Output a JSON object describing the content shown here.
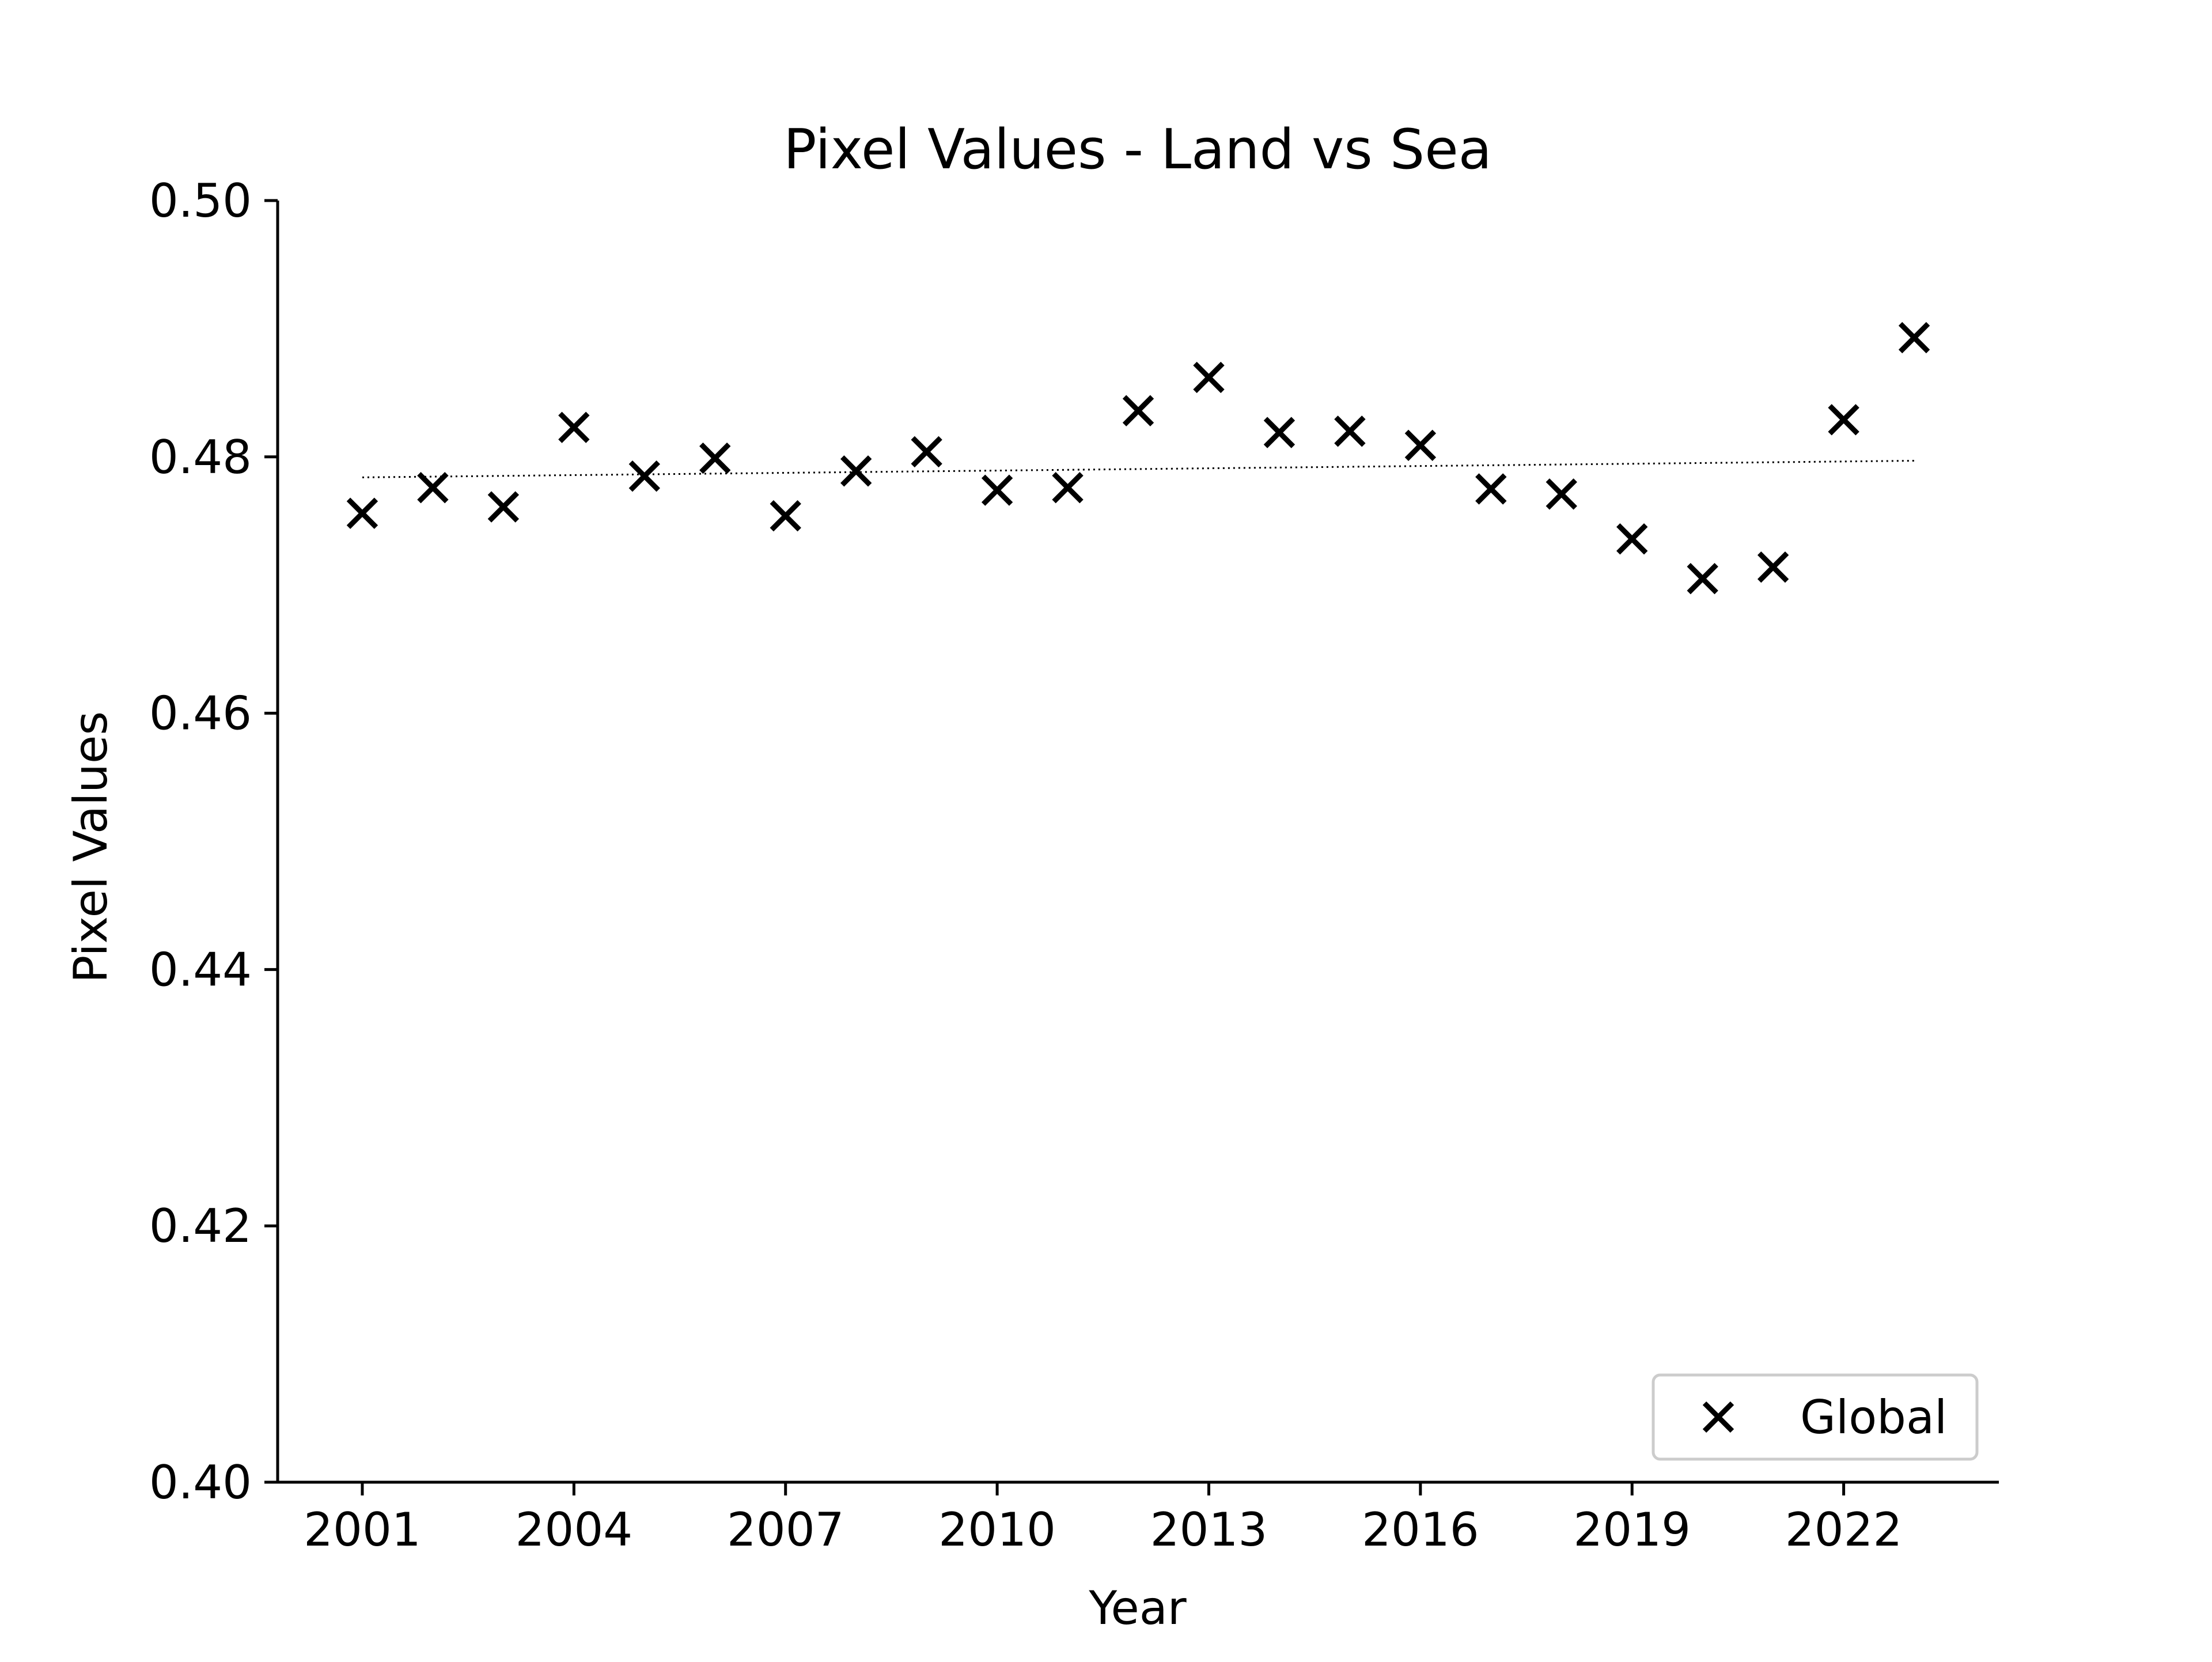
{
  "chart_data": {
    "type": "scatter",
    "title": "Pixel Values - Land vs Sea",
    "xlabel": "Year",
    "ylabel": "Pixel Values",
    "xlim": [
      1999.8,
      2024.2
    ],
    "ylim": [
      0.4,
      0.5
    ],
    "xticks": [
      2001,
      2004,
      2007,
      2010,
      2013,
      2016,
      2019,
      2022
    ],
    "yticks": [
      0.4,
      0.42,
      0.44,
      0.46,
      0.48,
      0.5
    ],
    "x_tick_labels": [
      "2001",
      "2004",
      "2007",
      "2010",
      "2013",
      "2016",
      "2019",
      "2022"
    ],
    "y_tick_labels": [
      "0.40",
      "0.42",
      "0.44",
      "0.46",
      "0.48",
      "0.50"
    ],
    "grid": false,
    "legend_position": "bottom-right",
    "series": [
      {
        "name": "Global",
        "marker": "x",
        "color": "#000000",
        "x": [
          2001,
          2002,
          2003,
          2004,
          2005,
          2006,
          2007,
          2008,
          2009,
          2010,
          2011,
          2012,
          2013,
          2014,
          2015,
          2016,
          2017,
          2018,
          2019,
          2020,
          2021,
          2022,
          2023
        ],
        "y": [
          0.4756,
          0.4776,
          0.4761,
          0.4823,
          0.4785,
          0.4799,
          0.4754,
          0.4789,
          0.4804,
          0.4774,
          0.4776,
          0.4836,
          0.4862,
          0.4819,
          0.482,
          0.4809,
          0.4775,
          0.4771,
          0.4736,
          0.4705,
          0.4714,
          0.4829,
          0.4893
        ]
      }
    ],
    "trendline": {
      "style": "dotted",
      "color": "#000000",
      "x": [
        2001,
        2023
      ],
      "y": [
        0.4784,
        0.4797
      ]
    }
  }
}
